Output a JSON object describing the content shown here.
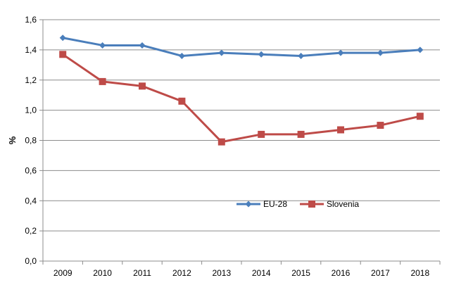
{
  "chart_data": {
    "type": "line",
    "title": "",
    "xlabel": "",
    "ylabel": "%",
    "ylim": [
      0,
      1.6
    ],
    "ytick_step": 0.2,
    "yticks": [
      "0,0",
      "0,2",
      "0,4",
      "0,6",
      "0,8",
      "1,0",
      "1,2",
      "1,4",
      "1,6"
    ],
    "grid": true,
    "legend_position": "inside-lower-right",
    "categories": [
      "2009",
      "2010",
      "2011",
      "2012",
      "2013",
      "2014",
      "2015",
      "2016",
      "2017",
      "2018"
    ],
    "series": [
      {
        "name": "EU-28",
        "color": "#4a7ebb",
        "marker": "diamond",
        "values": [
          1.48,
          1.43,
          1.43,
          1.36,
          1.38,
          1.37,
          1.36,
          1.38,
          1.38,
          1.4
        ]
      },
      {
        "name": "Slovenia",
        "color": "#be4b48",
        "marker": "square",
        "values": [
          1.37,
          1.19,
          1.16,
          1.06,
          0.79,
          0.84,
          0.84,
          0.87,
          0.9,
          0.96
        ]
      }
    ]
  }
}
